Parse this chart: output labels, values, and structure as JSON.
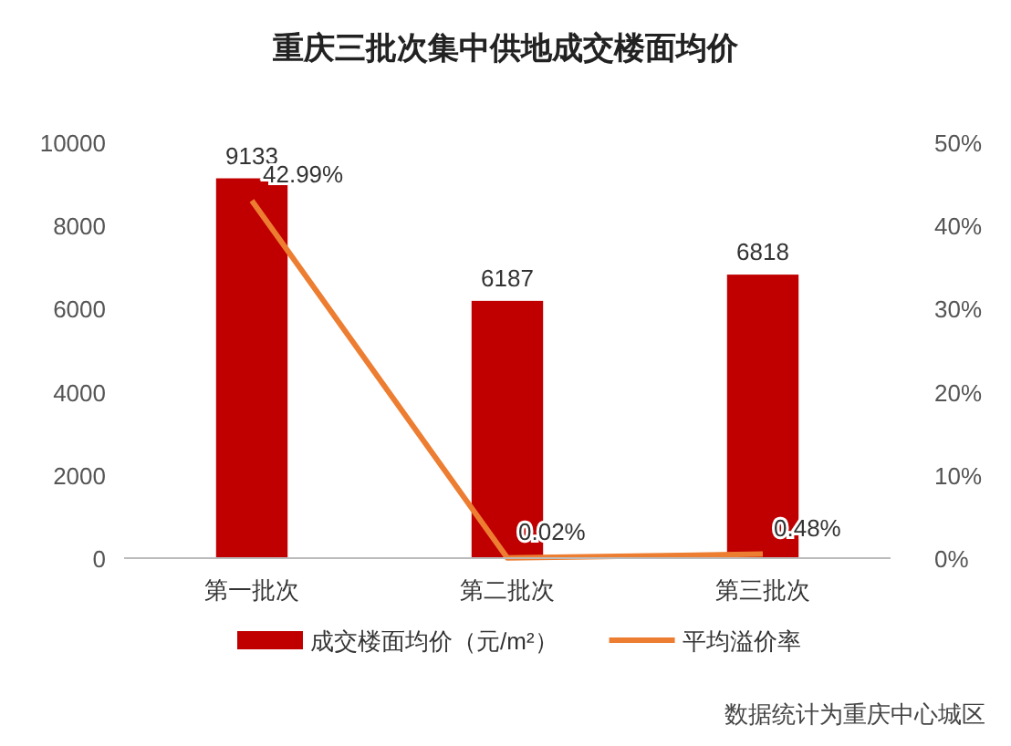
{
  "chart_data": {
    "type": "bar",
    "title": "重庆三批次集中供地成交楼面均价",
    "categories": [
      "第一批次",
      "第二批次",
      "第三批次"
    ],
    "series": [
      {
        "name": "成交楼面均价（元/m²）",
        "color": "#c00000",
        "values": [
          9133,
          6187,
          6818
        ],
        "value_labels": [
          "9133",
          "6187",
          "6818"
        ]
      },
      {
        "name": "平均溢价率",
        "type": "line",
        "axis": "y2",
        "color": "#ed7d31",
        "values": [
          42.99,
          0.02,
          0.48
        ],
        "value_labels": [
          "42.99%",
          "0.02%",
          "0.48%"
        ]
      }
    ],
    "ylim": [
      0,
      10000
    ],
    "yticks": [
      0,
      2000,
      4000,
      6000,
      8000,
      10000
    ],
    "y2lim": [
      0,
      50
    ],
    "y2ticks": [
      {
        "value": 0,
        "label": "0%"
      },
      {
        "value": 10,
        "label": "10%"
      },
      {
        "value": 20,
        "label": "20%"
      },
      {
        "value": 30,
        "label": "30%"
      },
      {
        "value": 40,
        "label": "40%"
      },
      {
        "value": 50,
        "label": "50%"
      }
    ],
    "grid": false,
    "legend": "bottom",
    "marker": "none",
    "line_style": "solid",
    "annotations": [
      "数据统计为重庆中心城区"
    ]
  }
}
